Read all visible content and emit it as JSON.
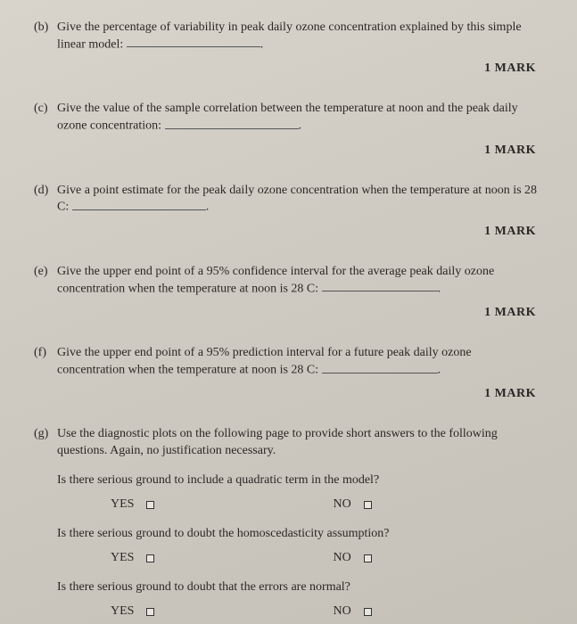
{
  "questions": {
    "b": {
      "label": "(b)",
      "text_before": "Give the percentage of variability in peak daily ozone concentration explained by this simple linear model:",
      "text_after": ".",
      "mark": "1 MARK"
    },
    "c": {
      "label": "(c)",
      "text_before": "Give the value of the sample correlation between the temperature at noon and the peak daily ozone concentration:",
      "text_after": ".",
      "mark": "1 MARK"
    },
    "d": {
      "label": "(d)",
      "text_before": "Give a point estimate for the peak daily ozone concentration when the temperature at noon is 28 C:",
      "text_after": ".",
      "mark": "1 MARK"
    },
    "e": {
      "label": "(e)",
      "text_before": "Give the upper end point of a 95% confidence interval for the average peak daily ozone concentration when the temperature at noon is 28 C:",
      "text_after": ".",
      "mark": "1 MARK"
    },
    "f": {
      "label": "(f)",
      "text_before": "Give the upper end point of a 95% prediction interval for a future peak daily ozone concentration when the temperature at noon is 28 C:",
      "text_after": ".",
      "mark": "1 MARK"
    },
    "g": {
      "label": "(g)",
      "text": "Use the diagnostic plots on the following page to provide short answers to the following questions. Again, no justification necessary.",
      "sub1": "Is there serious ground to include a quadratic term in the model?",
      "sub2": "Is there serious ground to doubt the homoscedasticity assumption?",
      "sub3": "Is there serious ground to doubt that the errors are normal?"
    }
  },
  "options": {
    "yes": "YES",
    "no": "NO"
  }
}
